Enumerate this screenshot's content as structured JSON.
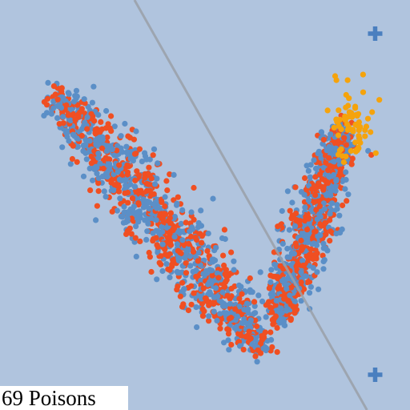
{
  "status": {
    "poison_count": "69",
    "poison_label": "Poisons"
  },
  "colors": {
    "background": "#b0c4de",
    "class_blue": "#5b8fc7",
    "class_red": "#f04f22",
    "poison": "#f5a30c",
    "boundary": "#9aa0a8",
    "target_marker": "#4a7fbf"
  },
  "icons": {
    "target_marker": "plus-icon"
  },
  "chart_data": {
    "type": "scatter",
    "title": "",
    "xlabel": "",
    "ylabel": "",
    "xlim": [
      0,
      100
    ],
    "ylim": [
      0,
      100
    ],
    "grid": false,
    "series": [
      {
        "clusters": [
          {
            "from": [
              14,
              77
            ],
            "to": [
              64,
              15
            ],
            "count": 700,
            "spread": 3.4
          },
          {
            "from": [
              68,
              22
            ],
            "to": [
              84,
              69
            ],
            "count": 500,
            "spread": 2.6
          }
        ]
      },
      {
        "clusters": [
          {
            "from": [
              14,
              77
            ],
            "to": [
              64,
              15
            ],
            "count": 600,
            "spread": 3.4
          },
          {
            "from": [
              68,
              22
            ],
            "to": [
              84,
              69
            ],
            "count": 480,
            "spread": 2.6
          }
        ]
      },
      {
        "count": 69,
        "center": [
          86,
          70
        ],
        "spread": 2.6
      }
    ],
    "boundary_line": {
      "from": [
        32.8,
        100
      ],
      "to": [
        89.5,
        0
      ]
    },
    "markers": [
      {
        "x": 91.5,
        "y": 91.8
      },
      {
        "x": 91.5,
        "y": 8.6
      }
    ]
  }
}
